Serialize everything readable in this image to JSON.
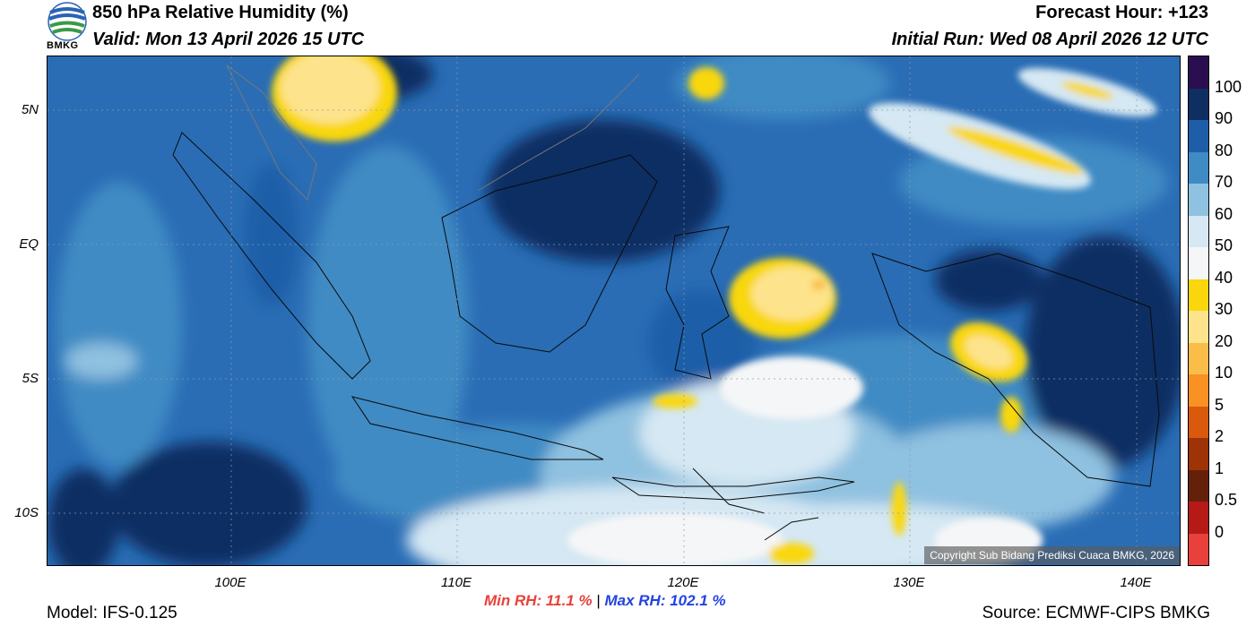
{
  "header": {
    "title": "850 hPa Relative Humidity (%)",
    "valid": "Valid: Mon 13 April 2026 15 UTC",
    "forecast_hour": "Forecast Hour: +123",
    "initial_run": "Initial Run: Wed 08 April 2026 12 UTC"
  },
  "logo": {
    "text": "BMKG",
    "icon": "bmkg-logo"
  },
  "map": {
    "lat_labels": [
      "5N",
      "EQ",
      "5S",
      "10S"
    ],
    "lon_labels": [
      "100E",
      "110E",
      "120E",
      "130E",
      "140E"
    ],
    "copyright": "Copyright Sub Bidang Prediksi Cuaca BMKG, 2026"
  },
  "colorbar": {
    "labels": [
      "100",
      "90",
      "80",
      "70",
      "60",
      "50",
      "40",
      "30",
      "20",
      "10",
      "5",
      "2",
      "1",
      "0.5",
      "0"
    ],
    "colors": [
      "#2a0e4f",
      "#0f2f63",
      "#1e5ea8",
      "#3f8bc4",
      "#8fc1e0",
      "#d5e8f3",
      "#f5f6f7",
      "#f9d70c",
      "#fde38b",
      "#fbbd4a",
      "#f99124",
      "#d95a0d",
      "#9d3307",
      "#65200a",
      "#b51a17",
      "#e8413b"
    ]
  },
  "stats": {
    "min_label": "Min RH:  11.1 %",
    "separator": "|",
    "max_label": "Max RH: 102.1 %"
  },
  "footer": {
    "model": "Model: IFS-0.125",
    "source": "Source: ECMWF-CIPS BMKG"
  }
}
